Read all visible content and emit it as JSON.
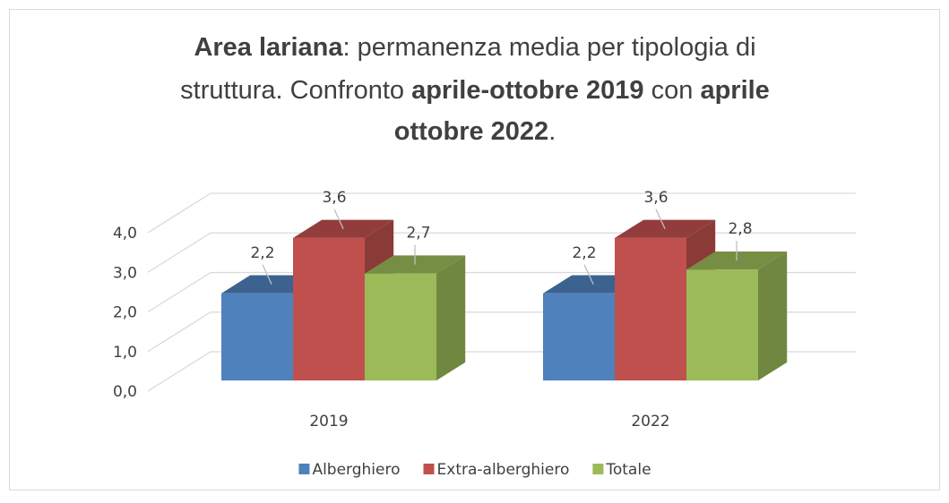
{
  "chart_data": {
    "type": "bar3d",
    "title": [
      [
        {
          "text": "Area lariana",
          "bold": true
        },
        {
          "text": ": permanenza media per tipologia di",
          "bold": false
        }
      ],
      [
        {
          "text": "struttura. Confronto ",
          "bold": false
        },
        {
          "text": "aprile-ottobre 2019",
          "bold": true
        },
        {
          "text": " con ",
          "bold": false
        },
        {
          "text": "aprile",
          "bold": true
        }
      ],
      [
        {
          "text": "ottobre 2022",
          "bold": true
        },
        {
          "text": ".",
          "bold": false
        }
      ]
    ],
    "categories": [
      "2019",
      "2022"
    ],
    "series": [
      {
        "name": "Alberghiero",
        "color": "#4f81bd",
        "values": [
          2.2,
          2.2
        ],
        "value_labels": [
          "2,2",
          "2,2"
        ]
      },
      {
        "name": "Extra-alberghiero",
        "color": "#c0504d",
        "values": [
          3.6,
          3.6
        ],
        "value_labels": [
          "3,6",
          "3,6"
        ]
      },
      {
        "name": "Totale",
        "color": "#9bbb59",
        "values": [
          2.7,
          2.8
        ],
        "value_labels": [
          "2,7",
          "2,8"
        ]
      }
    ],
    "ylim": [
      0,
      4
    ],
    "yticks": [
      {
        "value": 0,
        "label": "0,0"
      },
      {
        "value": 1,
        "label": "1,0"
      },
      {
        "value": 2,
        "label": "2,0"
      },
      {
        "value": 3,
        "label": "3,0"
      },
      {
        "value": 4,
        "label": "4,0"
      }
    ],
    "grid": true,
    "legend": "bottom"
  }
}
